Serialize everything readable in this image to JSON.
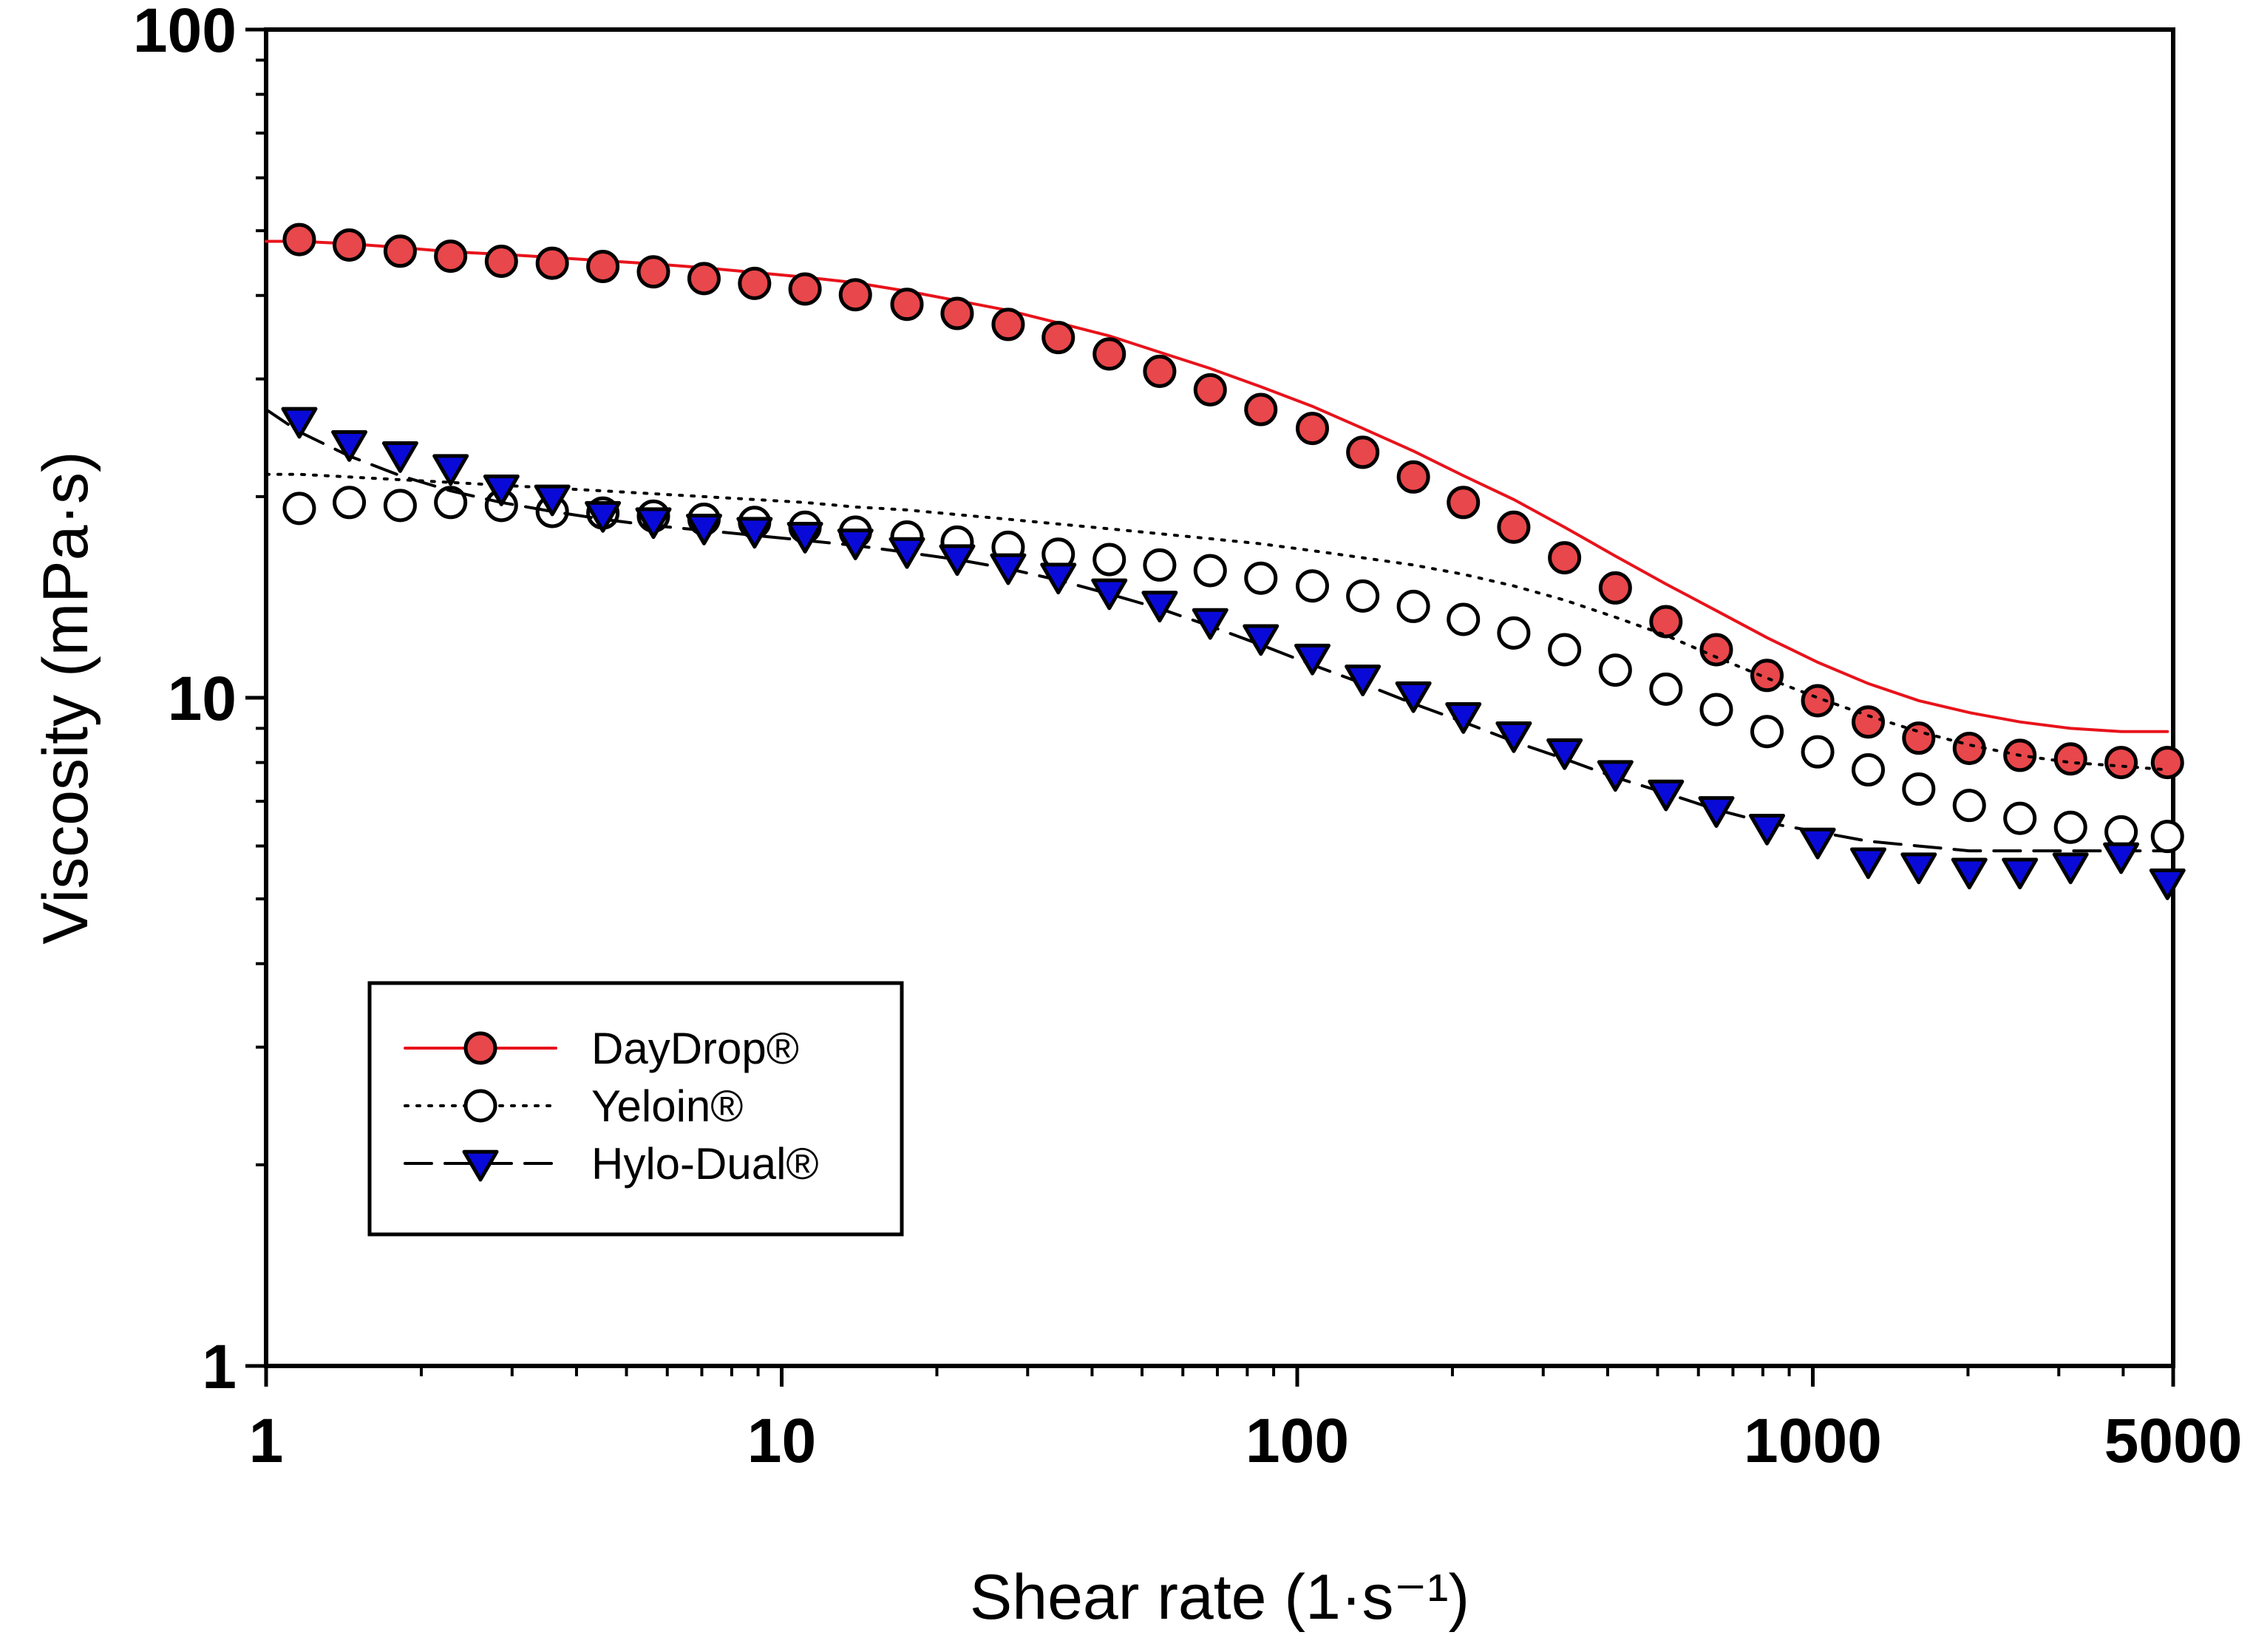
{
  "chart_data": {
    "type": "scatter",
    "title": "",
    "xlabel": "Shear rate (1·s⁻¹)",
    "ylabel": "Viscosity (mPa·s)",
    "xscale": "log",
    "yscale": "log",
    "xlim": [
      1,
      5000
    ],
    "ylim": [
      1,
      100
    ],
    "xticks": [
      1,
      10,
      100,
      1000,
      5000
    ],
    "xtick_labels": [
      "1",
      "10",
      "100",
      "1000",
      "5000"
    ],
    "yticks": [
      1,
      10,
      100
    ],
    "ytick_labels": [
      "1",
      "10",
      "100"
    ],
    "legend_position": "lower-left",
    "x": [
      1.16,
      1.45,
      1.82,
      2.28,
      2.86,
      3.59,
      4.5,
      5.64,
      7.07,
      8.86,
      11.1,
      13.9,
      17.5,
      21.9,
      27.5,
      34.4,
      43.2,
      54.1,
      67.8,
      85.0,
      107,
      134,
      168,
      210,
      263,
      330,
      414,
      519,
      650,
      815,
      1022,
      1281,
      1605,
      2012,
      2522,
      3162,
      3963,
      4874
    ],
    "series": [
      {
        "name": "DayDrop®",
        "style": "solid",
        "line_color": "#e8131b",
        "marker": "circle",
        "marker_fill": "#e8474b",
        "values": [
          48.2,
          47.8,
          47.2,
          46.5,
          46.1,
          45.6,
          45.1,
          44.6,
          44.0,
          43.3,
          42.6,
          41.8,
          40.6,
          39.3,
          38.0,
          36.4,
          34.8,
          32.9,
          31.1,
          29.2,
          27.3,
          25.3,
          23.4,
          21.5,
          19.8,
          18.0,
          16.3,
          14.8,
          13.5,
          12.3,
          11.3,
          10.5,
          9.9,
          9.5,
          9.2,
          9.0,
          8.9,
          8.9
        ],
        "points": [
          48.5,
          47.6,
          46.6,
          45.8,
          45.0,
          44.7,
          44.2,
          43.4,
          42.4,
          41.7,
          40.9,
          40.1,
          38.8,
          37.6,
          36.2,
          34.6,
          32.7,
          30.8,
          28.9,
          27.0,
          25.3,
          23.3,
          21.4,
          19.6,
          18.0,
          16.2,
          14.6,
          13.0,
          11.8,
          10.8,
          9.9,
          9.2,
          8.7,
          8.4,
          8.2,
          8.1,
          8.0,
          8.0
        ]
      },
      {
        "name": "Yeloin®",
        "style": "dotted",
        "line_color": "#000000",
        "marker": "circle",
        "marker_fill": "#ffffff",
        "values": [
          21.6,
          21.4,
          21.2,
          21.0,
          20.8,
          20.6,
          20.4,
          20.2,
          20.0,
          19.8,
          19.6,
          19.3,
          19.1,
          18.8,
          18.5,
          18.2,
          17.9,
          17.6,
          17.3,
          17.0,
          16.6,
          16.2,
          15.8,
          15.3,
          14.7,
          14.0,
          13.2,
          12.4,
          11.5,
          10.7,
          10.0,
          9.4,
          8.9,
          8.5,
          8.2,
          8.0,
          7.9,
          7.8
        ],
        "points": [
          19.2,
          19.6,
          19.4,
          19.6,
          19.4,
          19.0,
          18.9,
          18.7,
          18.5,
          18.3,
          18.0,
          17.7,
          17.4,
          17.1,
          16.8,
          16.4,
          16.1,
          15.8,
          15.5,
          15.1,
          14.7,
          14.2,
          13.7,
          13.1,
          12.5,
          11.8,
          11.0,
          10.3,
          9.6,
          8.9,
          8.3,
          7.8,
          7.3,
          6.9,
          6.6,
          6.4,
          6.3,
          6.2
        ]
      },
      {
        "name": "Hylo-Dual®",
        "style": "dashed",
        "line_color": "#000000",
        "marker": "triangle-down",
        "marker_fill": "#0a0ad8",
        "values": [
          25.0,
          23.0,
          21.5,
          20.4,
          19.6,
          19.0,
          18.5,
          18.1,
          17.8,
          17.5,
          17.2,
          16.9,
          16.5,
          16.1,
          15.6,
          15.0,
          14.3,
          13.6,
          12.8,
          12.0,
          11.2,
          10.5,
          9.8,
          9.2,
          8.6,
          8.1,
          7.6,
          7.2,
          6.8,
          6.5,
          6.3,
          6.1,
          6.0,
          5.9,
          5.9,
          5.9,
          5.9,
          5.9
        ],
        "points": [
          26.0,
          24.0,
          23.1,
          22.1,
          20.6,
          19.9,
          18.8,
          18.4,
          18.0,
          17.8,
          17.5,
          17.1,
          16.6,
          16.2,
          15.7,
          15.2,
          14.4,
          13.8,
          13.0,
          12.3,
          11.5,
          10.7,
          10.1,
          9.4,
          8.8,
          8.3,
          7.7,
          7.2,
          6.8,
          6.4,
          6.1,
          5.7,
          5.6,
          5.5,
          5.5,
          5.6,
          5.8,
          5.3
        ]
      }
    ]
  }
}
